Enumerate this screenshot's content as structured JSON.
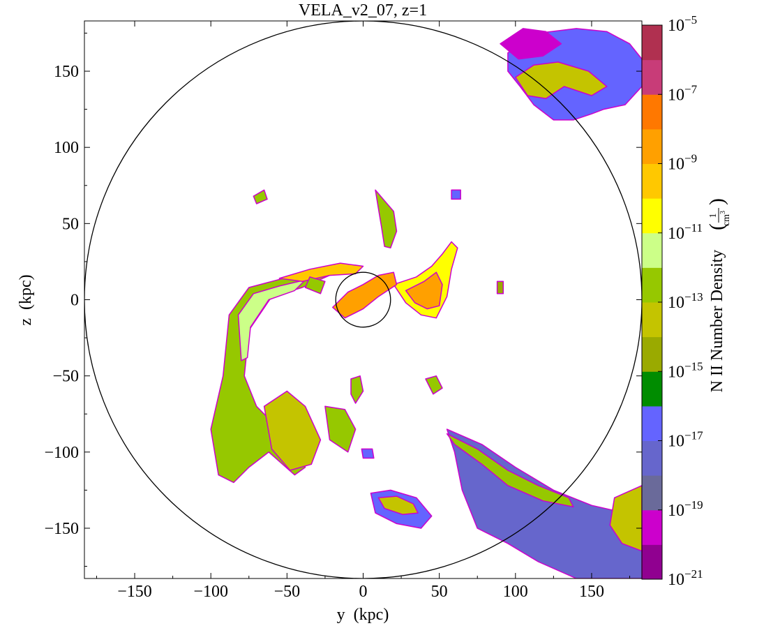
{
  "chart_data": {
    "type": "heatmap",
    "title": "VELA_v2_07, z=1",
    "xlabel": "y  (kpc)",
    "ylabel": "z  (kpc)",
    "xlim": [
      -183,
      183
    ],
    "ylim": [
      -183,
      183
    ],
    "x_ticks": [
      -150,
      -100,
      -50,
      0,
      50,
      100,
      150
    ],
    "x_tick_labels": [
      "−150",
      "−100",
      "−50",
      "0",
      "50",
      "100",
      "150"
    ],
    "y_ticks": [
      150,
      100,
      50,
      0,
      -50,
      -100,
      -150
    ],
    "y_tick_labels": [
      "150",
      "100",
      "50",
      "0",
      "−50",
      "−100",
      "−150"
    ],
    "colorbar": {
      "label": "N II Number Density",
      "unit_numerator": "1",
      "unit_denominator": "cm",
      "unit_power": "3",
      "log_range": [
        -21,
        -5
      ],
      "ticks": [
        {
          "base": "10",
          "exp": "-5",
          "value": -5
        },
        {
          "base": "10",
          "exp": "-7",
          "value": -7
        },
        {
          "base": "10",
          "exp": "-9",
          "value": -9
        },
        {
          "base": "10",
          "exp": "-11",
          "value": -11
        },
        {
          "base": "10",
          "exp": "-13",
          "value": -13
        },
        {
          "base": "10",
          "exp": "-15",
          "value": -15
        },
        {
          "base": "10",
          "exp": "-17",
          "value": -17
        },
        {
          "base": "10",
          "exp": "-19",
          "value": -19
        },
        {
          "base": "10",
          "exp": "-21",
          "value": -21
        }
      ],
      "levels": [
        {
          "from": -21,
          "to": -20,
          "color": "#900090"
        },
        {
          "from": -20,
          "to": -19,
          "color": "#cc00cc"
        },
        {
          "from": -19,
          "to": -18,
          "color": "#6a6a9a"
        },
        {
          "from": -18,
          "to": -17,
          "color": "#6666cc"
        },
        {
          "from": -17,
          "to": -16,
          "color": "#6464ff"
        },
        {
          "from": -16,
          "to": -15,
          "color": "#008c00"
        },
        {
          "from": -15,
          "to": -14,
          "color": "#9aaa00"
        },
        {
          "from": -14,
          "to": -13,
          "color": "#c4c400"
        },
        {
          "from": -13,
          "to": -12,
          "color": "#96c800"
        },
        {
          "from": -12,
          "to": -11,
          "color": "#ccff88"
        },
        {
          "from": -11,
          "to": -10,
          "color": "#ffff00"
        },
        {
          "from": -10,
          "to": -9,
          "color": "#ffc800"
        },
        {
          "from": -9,
          "to": -8,
          "color": "#ffa000"
        },
        {
          "from": -8,
          "to": -7,
          "color": "#ff7800"
        },
        {
          "from": -7,
          "to": -6,
          "color": "#c83c78"
        },
        {
          "from": -6,
          "to": -5,
          "color": "#b03050"
        }
      ]
    },
    "circles": [
      {
        "name": "outer-virial-circle",
        "cx": 0,
        "cy": 0,
        "r": 183
      },
      {
        "name": "inner-galaxy-circle",
        "cx": 0,
        "cy": 0,
        "r": 18
      }
    ],
    "blobs": [
      {
        "name": "blob-top-right-cloud",
        "level": -17,
        "points": [
          [
            95,
            162
          ],
          [
            115,
            175
          ],
          [
            140,
            178
          ],
          [
            160,
            176
          ],
          [
            175,
            168
          ],
          [
            183,
            158
          ],
          [
            183,
            140
          ],
          [
            172,
            128
          ],
          [
            158,
            125
          ],
          [
            150,
            122
          ],
          [
            138,
            118
          ],
          [
            125,
            118
          ],
          [
            112,
            128
          ],
          [
            103,
            140
          ],
          [
            95,
            150
          ]
        ]
      },
      {
        "name": "blob-top-right-cloud-outer",
        "level": -20,
        "points": [
          [
            90,
            168
          ],
          [
            105,
            178
          ],
          [
            120,
            176
          ],
          [
            130,
            168
          ],
          [
            118,
            160
          ],
          [
            102,
            158
          ]
        ]
      },
      {
        "name": "blob-top-right-cloud-core",
        "level": -14,
        "points": [
          [
            100,
            146
          ],
          [
            112,
            154
          ],
          [
            128,
            156
          ],
          [
            148,
            150
          ],
          [
            160,
            140
          ],
          [
            150,
            134
          ],
          [
            132,
            140
          ],
          [
            120,
            132
          ],
          [
            108,
            134
          ]
        ]
      },
      {
        "name": "blob-bottom-right-stream",
        "level": -18,
        "points": [
          [
            55,
            -85
          ],
          [
            78,
            -95
          ],
          [
            100,
            -110
          ],
          [
            125,
            -125
          ],
          [
            150,
            -135
          ],
          [
            172,
            -140
          ],
          [
            183,
            -140
          ],
          [
            183,
            -183
          ],
          [
            140,
            -183
          ],
          [
            115,
            -172
          ],
          [
            95,
            -160
          ],
          [
            75,
            -150
          ],
          [
            65,
            -125
          ],
          [
            60,
            -100
          ]
        ]
      },
      {
        "name": "blob-bottom-right-stream-core",
        "level": -13,
        "points": [
          [
            55,
            -88
          ],
          [
            75,
            -98
          ],
          [
            95,
            -112
          ],
          [
            115,
            -122
          ],
          [
            135,
            -130
          ],
          [
            138,
            -136
          ],
          [
            118,
            -132
          ],
          [
            95,
            -122
          ],
          [
            78,
            -108
          ],
          [
            60,
            -95
          ]
        ]
      },
      {
        "name": "blob-bottom-right-corner",
        "level": -14,
        "points": [
          [
            165,
            -130
          ],
          [
            183,
            -122
          ],
          [
            183,
            -165
          ],
          [
            170,
            -160
          ],
          [
            162,
            -148
          ]
        ]
      },
      {
        "name": "blob-left-arc",
        "level": -13,
        "points": [
          [
            -95,
            -115
          ],
          [
            -100,
            -85
          ],
          [
            -92,
            -50
          ],
          [
            -88,
            -10
          ],
          [
            -75,
            8
          ],
          [
            -60,
            12
          ],
          [
            -45,
            16
          ],
          [
            -30,
            20
          ],
          [
            -22,
            16
          ],
          [
            -40,
            8
          ],
          [
            -60,
            2
          ],
          [
            -75,
            -20
          ],
          [
            -78,
            -50
          ],
          [
            -70,
            -70
          ],
          [
            -55,
            -85
          ],
          [
            -42,
            -90
          ],
          [
            -38,
            -110
          ],
          [
            -45,
            -115
          ],
          [
            -62,
            -100
          ],
          [
            -75,
            -110
          ],
          [
            -85,
            -120
          ]
        ]
      },
      {
        "name": "blob-left-arc-core",
        "level": -12,
        "points": [
          [
            -80,
            -40
          ],
          [
            -82,
            -10
          ],
          [
            -72,
            4
          ],
          [
            -55,
            9
          ],
          [
            -38,
            13
          ],
          [
            -45,
            6
          ],
          [
            -62,
            0
          ],
          [
            -74,
            -18
          ],
          [
            -76,
            -38
          ]
        ]
      },
      {
        "name": "blob-left-lower-lobe",
        "level": -14,
        "points": [
          [
            -65,
            -70
          ],
          [
            -50,
            -60
          ],
          [
            -38,
            -70
          ],
          [
            -28,
            -92
          ],
          [
            -34,
            -108
          ],
          [
            -48,
            -112
          ],
          [
            -60,
            -98
          ]
        ]
      },
      {
        "name": "blob-left-small-lobe",
        "level": -13,
        "points": [
          [
            -25,
            -70
          ],
          [
            -12,
            -72
          ],
          [
            -5,
            -85
          ],
          [
            -10,
            -100
          ],
          [
            -22,
            -92
          ]
        ]
      },
      {
        "name": "blob-right-arm",
        "level": -11,
        "points": [
          [
            20,
            10
          ],
          [
            35,
            15
          ],
          [
            45,
            22
          ],
          [
            52,
            30
          ],
          [
            58,
            38
          ],
          [
            62,
            34
          ],
          [
            58,
            20
          ],
          [
            55,
            2
          ],
          [
            48,
            -12
          ],
          [
            38,
            -10
          ],
          [
            28,
            -2
          ]
        ]
      },
      {
        "name": "blob-right-arm-core",
        "level": -9,
        "points": [
          [
            28,
            6
          ],
          [
            40,
            12
          ],
          [
            48,
            18
          ],
          [
            52,
            10
          ],
          [
            50,
            -4
          ],
          [
            42,
            -6
          ],
          [
            34,
            -2
          ]
        ]
      },
      {
        "name": "blob-upper-filament",
        "level": -13,
        "points": [
          [
            8,
            72
          ],
          [
            14,
            65
          ],
          [
            20,
            58
          ],
          [
            22,
            45
          ],
          [
            18,
            34
          ],
          [
            14,
            35
          ],
          [
            12,
            48
          ],
          [
            10,
            60
          ]
        ]
      },
      {
        "name": "blob-upper-left-filament",
        "level": -10,
        "points": [
          [
            -55,
            14
          ],
          [
            -35,
            20
          ],
          [
            -15,
            24
          ],
          [
            0,
            22
          ],
          [
            -5,
            17
          ],
          [
            -22,
            16
          ],
          [
            -40,
            12
          ]
        ]
      },
      {
        "name": "blob-inner-core",
        "level": -9,
        "points": [
          [
            -20,
            -5
          ],
          [
            -10,
            5
          ],
          [
            0,
            10
          ],
          [
            10,
            16
          ],
          [
            20,
            18
          ],
          [
            22,
            10
          ],
          [
            10,
            2
          ],
          [
            0,
            -6
          ],
          [
            -12,
            -12
          ]
        ]
      },
      {
        "name": "blob-lower-center-cloud",
        "level": -17,
        "points": [
          [
            5,
            -127
          ],
          [
            18,
            -125
          ],
          [
            35,
            -130
          ],
          [
            45,
            -142
          ],
          [
            38,
            -150
          ],
          [
            22,
            -147
          ],
          [
            8,
            -140
          ]
        ]
      },
      {
        "name": "blob-lower-center-cloud-core",
        "level": -14,
        "points": [
          [
            10,
            -130
          ],
          [
            22,
            -129
          ],
          [
            33,
            -134
          ],
          [
            36,
            -140
          ],
          [
            26,
            -141
          ],
          [
            14,
            -137
          ]
        ]
      },
      {
        "name": "blob-small-1",
        "level": -13,
        "points": [
          [
            -72,
            68
          ],
          [
            -65,
            72
          ],
          [
            -63,
            66
          ],
          [
            -70,
            63
          ]
        ]
      },
      {
        "name": "blob-small-2",
        "level": -13,
        "points": [
          [
            -8,
            -52
          ],
          [
            -2,
            -50
          ],
          [
            0,
            -60
          ],
          [
            -5,
            -68
          ],
          [
            -8,
            -62
          ]
        ]
      },
      {
        "name": "blob-small-3",
        "level": -17,
        "points": [
          [
            -1,
            -98
          ],
          [
            6,
            -98
          ],
          [
            7,
            -104
          ],
          [
            0,
            -104
          ]
        ]
      },
      {
        "name": "blob-small-4",
        "level": -13,
        "points": [
          [
            41,
            -52
          ],
          [
            48,
            -50
          ],
          [
            52,
            -58
          ],
          [
            46,
            -62
          ]
        ]
      },
      {
        "name": "blob-small-5",
        "level": -17,
        "points": [
          [
            58,
            72
          ],
          [
            64,
            72
          ],
          [
            64,
            66
          ],
          [
            58,
            66
          ]
        ]
      },
      {
        "name": "blob-small-6",
        "level": -15,
        "points": [
          [
            88,
            12
          ],
          [
            92,
            12
          ],
          [
            92,
            4
          ],
          [
            88,
            4
          ]
        ]
      },
      {
        "name": "blob-small-7",
        "level": -13,
        "points": [
          [
            -35,
            15
          ],
          [
            -25,
            12
          ],
          [
            -28,
            4
          ],
          [
            -38,
            8
          ]
        ]
      }
    ]
  }
}
